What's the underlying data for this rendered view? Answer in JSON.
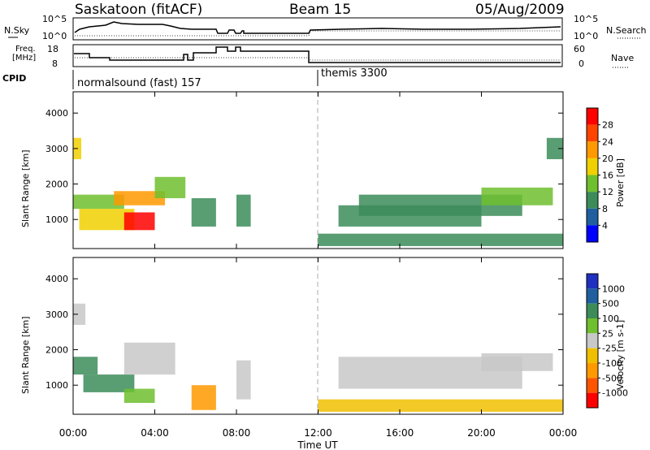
{
  "header": {
    "station": "Saskatoon (fitACF)",
    "beam": "Beam 15",
    "date": "05/Aug/2009"
  },
  "param_panels": {
    "nsky": {
      "label": "N.Sky",
      "left_ticks": [
        "10^5",
        "10^0"
      ],
      "right_ticks": [
        "10^5",
        "10^0"
      ],
      "right_label": "N.Search"
    },
    "freq": {
      "label_line1": "Freq.",
      "label_line2": "[MHz]",
      "left_ticks": [
        "18",
        "8"
      ],
      "right_ticks": [
        "60",
        "0"
      ],
      "right_label": "Nave"
    },
    "cpid": {
      "label": "CPID",
      "modes": [
        {
          "label": "normalsound (fast) 157"
        },
        {
          "label": "themis 3300"
        }
      ]
    }
  },
  "colors": {
    "power": [
      "#0000ff",
      "#1f5fa0",
      "#3c8c5a",
      "#6fbf2f",
      "#f0d000",
      "#ff9900",
      "#ff4400",
      "#ff0000"
    ],
    "velocity": [
      "#2030c0",
      "#1f5fa0",
      "#3c8c5a",
      "#6fbf2f",
      "#c8c8c8",
      "#f0c000",
      "#ff9900",
      "#ff5500",
      "#ff0000"
    ]
  },
  "chart_data": [
    {
      "type": "heatmap",
      "name": "power",
      "ylabel": "Slant Range [km]",
      "yticks": [
        "1000",
        "2000",
        "3000",
        "4000"
      ],
      "ylim": [
        180,
        4600
      ],
      "colorbar_label": "Power [dB]",
      "colorbar_ticks": [
        "4",
        "8",
        "12",
        "16",
        "20",
        "24",
        "28"
      ],
      "colorbar_range": [
        0,
        32
      ],
      "blocks": [
        {
          "t": [
            0.0,
            0.4
          ],
          "r": [
            2700,
            3300
          ],
          "v": 16
        },
        {
          "t": [
            0.0,
            2.5
          ],
          "r": [
            1300,
            1700
          ],
          "v": 12
        },
        {
          "t": [
            0.3,
            3.0
          ],
          "r": [
            700,
            1300
          ],
          "v": 16
        },
        {
          "t": [
            2.5,
            4.0
          ],
          "r": [
            700,
            1200
          ],
          "v": 28
        },
        {
          "t": [
            2.0,
            4.5
          ],
          "r": [
            1400,
            1800
          ],
          "v": 20
        },
        {
          "t": [
            4.0,
            5.5
          ],
          "r": [
            1600,
            2200
          ],
          "v": 12
        },
        {
          "t": [
            5.8,
            7.0
          ],
          "r": [
            800,
            1600
          ],
          "v": 8
        },
        {
          "t": [
            8.0,
            8.7
          ],
          "r": [
            800,
            1700
          ],
          "v": 8
        },
        {
          "t": [
            12.0,
            24.0
          ],
          "r": [
            250,
            600
          ],
          "v": 8
        },
        {
          "t": [
            13.0,
            20.0
          ],
          "r": [
            800,
            1400
          ],
          "v": 8
        },
        {
          "t": [
            14.0,
            22.0
          ],
          "r": [
            1100,
            1700
          ],
          "v": 8
        },
        {
          "t": [
            20.0,
            23.5
          ],
          "r": [
            1400,
            1900
          ],
          "v": 12
        },
        {
          "t": [
            23.2,
            24.0
          ],
          "r": [
            2700,
            3300
          ],
          "v": 8
        }
      ]
    },
    {
      "type": "heatmap",
      "name": "velocity",
      "ylabel": "Slant Range [km]",
      "yticks": [
        "1000",
        "2000",
        "3000",
        "4000"
      ],
      "ylim": [
        180,
        4600
      ],
      "xlabel": "Time UT",
      "xticks": [
        "00:00",
        "04:00",
        "08:00",
        "12:00",
        "16:00",
        "20:00",
        "00:00"
      ],
      "xlim": [
        0,
        24
      ],
      "colorbar_label": "Velocity [m s-1]",
      "colorbar_ticks": [
        "1000",
        "500",
        "100",
        "25",
        "-25",
        "-100",
        "-500",
        "-1000"
      ],
      "blocks": [
        {
          "t": [
            0.0,
            1.2
          ],
          "r": [
            1300,
            1800
          ],
          "v": 300
        },
        {
          "t": [
            0.0,
            0.6
          ],
          "r": [
            2700,
            3300
          ],
          "v": 0
        },
        {
          "t": [
            0.5,
            3.0
          ],
          "r": [
            800,
            1300
          ],
          "v": 150
        },
        {
          "t": [
            2.5,
            4.0
          ],
          "r": [
            500,
            900
          ],
          "v": 60
        },
        {
          "t": [
            2.5,
            5.0
          ],
          "r": [
            1300,
            2200
          ],
          "v": 0
        },
        {
          "t": [
            5.8,
            7.0
          ],
          "r": [
            300,
            1000
          ],
          "v": -150
        },
        {
          "t": [
            8.0,
            8.7
          ],
          "r": [
            600,
            1700
          ],
          "v": 0
        },
        {
          "t": [
            12.0,
            24.0
          ],
          "r": [
            250,
            600
          ],
          "v": -60
        },
        {
          "t": [
            13.0,
            22.0
          ],
          "r": [
            900,
            1800
          ],
          "v": 0
        },
        {
          "t": [
            20.0,
            23.5
          ],
          "r": [
            1400,
            1900
          ],
          "v": 0
        }
      ]
    }
  ]
}
